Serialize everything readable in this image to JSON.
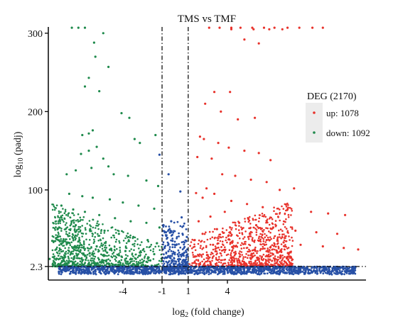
{
  "chart_data": {
    "type": "scatter",
    "title": "TMS vs TMF",
    "xlabel": {
      "main": "log",
      "sub": "2",
      "rest": " (fold change)"
    },
    "ylabel": {
      "main": "log",
      "sub": "10",
      "rest": " (padj)"
    },
    "xlim": [
      -9.7,
      14.6
    ],
    "ylim": [
      -15,
      308
    ],
    "x_ticks": [
      {
        "value": -4,
        "label": "-4"
      },
      {
        "value": -1,
        "label": "-1"
      },
      {
        "value": 1,
        "label": "1"
      },
      {
        "value": 4,
        "label": "4"
      }
    ],
    "y_ticks": [
      {
        "value": 2.3,
        "label": "2.3"
      },
      {
        "value": 100,
        "label": "100"
      },
      {
        "value": 200,
        "label": "200"
      },
      {
        "value": 300,
        "label": "300"
      }
    ],
    "thresholds": {
      "log2fc": [
        -1,
        1
      ],
      "neg_log10_padj": 2.3
    },
    "cap_value": 305,
    "legend": {
      "title": "DEG (2170)",
      "position": "right",
      "entries": [
        {
          "label": "up: 1078",
          "color": "#e8322b"
        },
        {
          "label": "down: 1092",
          "color": "#1f8a4c"
        }
      ]
    },
    "colors": {
      "up": "#e8322b",
      "down": "#1f8a4c",
      "not_significant": "#2750a6"
    },
    "series": [
      {
        "name": "up",
        "points": [
          [
            2.6,
            307
          ],
          [
            3.4,
            307
          ],
          [
            4.3,
            307
          ],
          [
            5.0,
            307
          ],
          [
            5.9,
            307
          ],
          [
            6.8,
            307
          ],
          [
            7.6,
            307
          ],
          [
            8.6,
            307
          ],
          [
            9.5,
            307
          ],
          [
            10.5,
            307
          ],
          [
            11.3,
            307
          ],
          [
            4.3,
            305
          ],
          [
            6.0,
            305
          ],
          [
            7.2,
            305
          ],
          [
            8.2,
            305
          ],
          [
            6.4,
            287
          ],
          [
            5.3,
            292
          ],
          [
            3.0,
            225
          ],
          [
            4.2,
            225
          ],
          [
            2.3,
            210
          ],
          [
            3.5,
            200
          ],
          [
            4.8,
            190
          ],
          [
            6.1,
            192
          ],
          [
            1.9,
            168
          ],
          [
            2.2,
            165
          ],
          [
            3.3,
            160
          ],
          [
            4.1,
            154
          ],
          [
            5.3,
            150
          ],
          [
            6.4,
            147
          ],
          [
            7.3,
            138
          ],
          [
            2.8,
            140
          ],
          [
            1.7,
            142
          ],
          [
            3.6,
            120
          ],
          [
            4.6,
            118
          ],
          [
            5.8,
            113
          ],
          [
            7.0,
            110
          ],
          [
            8.0,
            100
          ],
          [
            9.1,
            102
          ],
          [
            2.4,
            102
          ],
          [
            1.6,
            96
          ],
          [
            3.0,
            95
          ],
          [
            2.1,
            90
          ],
          [
            4.3,
            86
          ],
          [
            5.5,
            82
          ],
          [
            6.7,
            78
          ],
          [
            8.6,
            75
          ],
          [
            10.4,
            72
          ],
          [
            11.7,
            70
          ],
          [
            13.0,
            68
          ],
          [
            3.8,
            72
          ],
          [
            2.7,
            66
          ],
          [
            1.8,
            60
          ],
          [
            4.9,
            58
          ],
          [
            6.2,
            55
          ],
          [
            7.5,
            52
          ],
          [
            9.2,
            48
          ],
          [
            10.8,
            46
          ],
          [
            12.4,
            44
          ],
          [
            3.2,
            50
          ],
          [
            2.1,
            44
          ],
          [
            4.1,
            42
          ],
          [
            5.6,
            40
          ],
          [
            7.0,
            36
          ],
          [
            8.3,
            33
          ],
          [
            9.6,
            30
          ],
          [
            11.3,
            28
          ],
          [
            12.9,
            26
          ],
          [
            14.0,
            24
          ],
          [
            1.5,
            36
          ],
          [
            2.9,
            30
          ],
          [
            4.6,
            28
          ],
          [
            6.1,
            24
          ]
        ]
      },
      {
        "name": "down",
        "points": [
          [
            -7.9,
            307
          ],
          [
            -7.4,
            307
          ],
          [
            -6.9,
            307
          ],
          [
            -5.5,
            300
          ],
          [
            -6.2,
            288
          ],
          [
            -6.1,
            270
          ],
          [
            -5.1,
            257
          ],
          [
            -6.6,
            243
          ],
          [
            -6.9,
            232
          ],
          [
            -5.8,
            226
          ],
          [
            -4.1,
            198
          ],
          [
            -3.5,
            192
          ],
          [
            -3.1,
            165
          ],
          [
            -2.7,
            160
          ],
          [
            -1.5,
            170
          ],
          [
            -6.3,
            176
          ],
          [
            -6.6,
            172
          ],
          [
            -7.1,
            170
          ],
          [
            -6.0,
            155
          ],
          [
            -6.6,
            150
          ],
          [
            -7.2,
            146
          ],
          [
            -5.5,
            140
          ],
          [
            -5.1,
            130
          ],
          [
            -6.4,
            128
          ],
          [
            -7.6,
            125
          ],
          [
            -8.3,
            120
          ],
          [
            -4.7,
            120
          ],
          [
            -3.6,
            118
          ],
          [
            -2.2,
            112
          ],
          [
            -1.3,
            105
          ],
          [
            -8.1,
            95
          ],
          [
            -7.1,
            92
          ],
          [
            -6.3,
            90
          ],
          [
            -5.0,
            88
          ],
          [
            -4.0,
            84
          ],
          [
            -2.8,
            80
          ],
          [
            -1.6,
            76
          ],
          [
            -8.7,
            80
          ],
          [
            -7.8,
            75
          ],
          [
            -6.9,
            72
          ],
          [
            -5.8,
            68
          ],
          [
            -4.6,
            64
          ],
          [
            -3.4,
            60
          ],
          [
            -2.2,
            58
          ],
          [
            -1.2,
            52
          ],
          [
            -8.9,
            60
          ],
          [
            -7.6,
            55
          ],
          [
            -6.5,
            50
          ],
          [
            -5.4,
            48
          ],
          [
            -4.3,
            44
          ],
          [
            -3.2,
            40
          ],
          [
            -2.1,
            36
          ],
          [
            -1.4,
            32
          ],
          [
            -9.4,
            35
          ],
          [
            -8.3,
            33
          ],
          [
            -7.2,
            30
          ],
          [
            -6.0,
            28
          ],
          [
            -4.9,
            25
          ],
          [
            -3.8,
            22
          ],
          [
            -2.7,
            20
          ],
          [
            -1.6,
            18
          ],
          [
            -9.6,
            12
          ],
          [
            -8.6,
            14
          ],
          [
            -7.5,
            16
          ],
          [
            -6.3,
            18
          ],
          [
            -5.2,
            20
          ],
          [
            -4.1,
            15
          ],
          [
            -3.0,
            12
          ],
          [
            -1.9,
            10
          ]
        ]
      },
      {
        "name": "not_significant",
        "points": [
          [
            -1.2,
            145
          ],
          [
            -0.5,
            120
          ],
          [
            0.4,
            98
          ],
          [
            -0.3,
            60
          ],
          [
            0.5,
            65
          ],
          [
            -0.7,
            46
          ],
          [
            0.9,
            40
          ],
          [
            -0.2,
            35
          ],
          [
            0.1,
            30
          ],
          [
            -0.8,
            26
          ],
          [
            0.7,
            20
          ],
          [
            -0.4,
            15
          ],
          [
            0.3,
            12
          ],
          [
            -0.9,
            9
          ],
          [
            0.8,
            8
          ],
          [
            -0.1,
            6
          ],
          [
            0.2,
            4
          ],
          [
            -0.6,
            3
          ],
          [
            0.6,
            2
          ],
          [
            0.0,
            1.5
          ],
          [
            -0.3,
            1
          ],
          [
            0.4,
            0.5
          ]
        ]
      }
    ]
  }
}
